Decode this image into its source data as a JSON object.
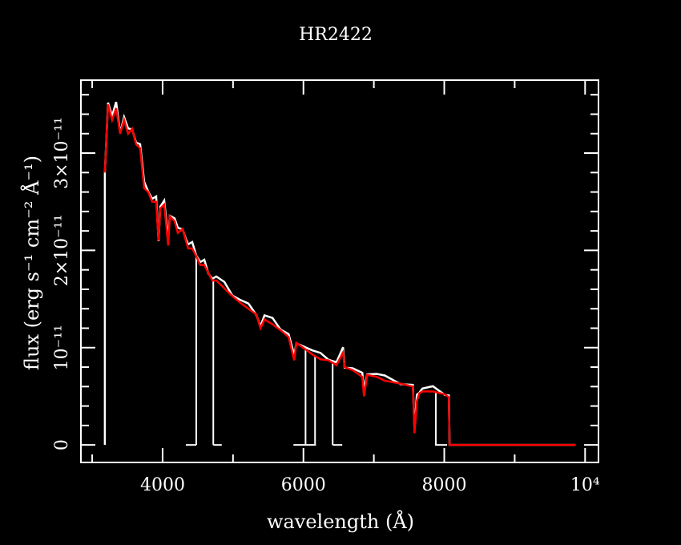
{
  "chart_data": {
    "type": "line",
    "title": "HR2422",
    "xlabel": "wavelength (Å)",
    "ylabel": "flux (erg s⁻¹ cm⁻² Å⁻¹)",
    "y_unit_scale": 1e-11,
    "xlim": [
      2840,
      10190
    ],
    "ylim": [
      -0.18,
      3.75
    ],
    "x_ticks": [
      {
        "value": 4000,
        "label": "4000"
      },
      {
        "value": 6000,
        "label": "6000"
      },
      {
        "value": 8000,
        "label": "8000"
      },
      {
        "value": 10000,
        "label": "10⁴"
      }
    ],
    "x_minor_step": 1000,
    "y_ticks": [
      {
        "value": 0,
        "label": "0"
      },
      {
        "value": 1,
        "label": "10⁻¹¹"
      },
      {
        "value": 2,
        "label": "2×10⁻¹¹"
      },
      {
        "value": 3,
        "label": "3×10⁻¹¹"
      }
    ],
    "y_minor_step": 0.2,
    "grid": false,
    "colors": {
      "background": "#000000",
      "axes": "#ffffff",
      "series_observed": "#ffffff",
      "series_model": "#ff0000"
    },
    "series": [
      {
        "color": "#ff0000",
        "x": [
          3180,
          3225,
          3283,
          3340,
          3397,
          3453,
          3510,
          3567,
          3624,
          3681,
          3738,
          3795,
          3852,
          3909,
          3943,
          3966,
          4023,
          4080,
          4102,
          4170,
          4216,
          4285,
          4330,
          4364,
          4421,
          4478,
          4535,
          4592,
          4649,
          4706,
          4763,
          4877,
          4991,
          5105,
          5219,
          5333,
          5390,
          5447,
          5561,
          5675,
          5789,
          5869,
          5900,
          6014,
          6128,
          6242,
          6355,
          6469,
          6563,
          6585,
          6699,
          6836,
          6860,
          6905,
          7041,
          7155,
          7383,
          7554,
          7577,
          7611,
          7645,
          7690,
          7838,
          8009,
          8066,
          8075,
          9865
        ],
        "y": [
          2.8,
          3.5,
          3.34,
          3.46,
          3.2,
          3.34,
          3.2,
          3.25,
          3.09,
          3.05,
          2.64,
          2.6,
          2.5,
          2.5,
          2.1,
          2.43,
          2.47,
          2.05,
          2.35,
          2.3,
          2.18,
          2.22,
          2.1,
          2.02,
          2.02,
          1.94,
          1.85,
          1.85,
          1.77,
          1.69,
          1.69,
          1.61,
          1.53,
          1.46,
          1.4,
          1.34,
          1.2,
          1.29,
          1.24,
          1.18,
          1.11,
          0.87,
          1.05,
          0.99,
          0.93,
          0.88,
          0.87,
          0.82,
          0.95,
          0.8,
          0.77,
          0.7,
          0.5,
          0.72,
          0.7,
          0.66,
          0.63,
          0.6,
          0.12,
          0.45,
          0.53,
          0.55,
          0.55,
          0.52,
          0.49,
          0,
          0
        ]
      },
      {
        "color": "#ffffff",
        "x_start": 3180,
        "drops_to_zero": [
          4478,
          4720,
          6030,
          6165,
          6415,
          7880
        ],
        "zero_segments": [
          [
            4330,
            4478
          ],
          [
            4720,
            4840
          ],
          [
            5858,
            6177
          ],
          [
            6415,
            6551
          ],
          [
            7870,
            8040
          ]
        ]
      }
    ]
  }
}
